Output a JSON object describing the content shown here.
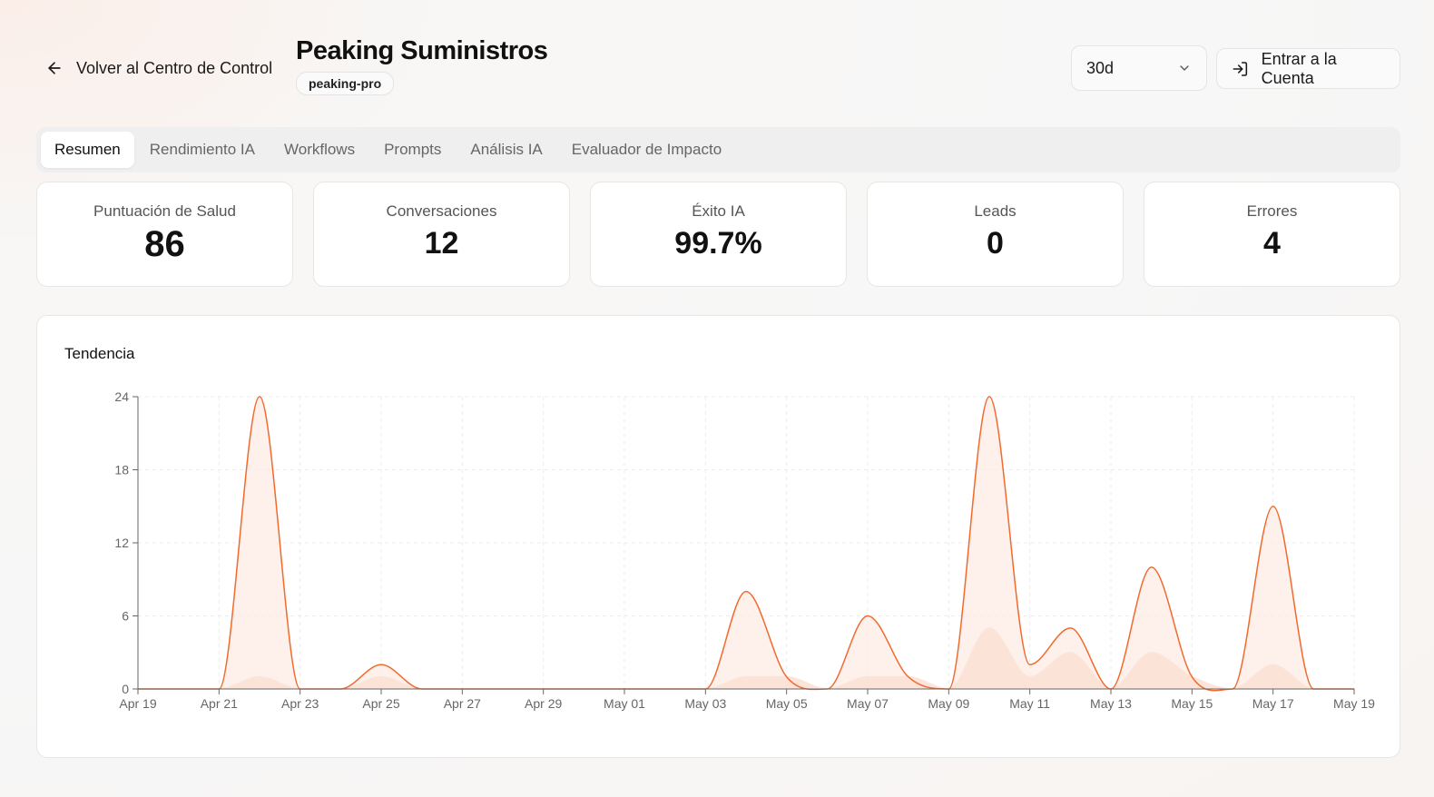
{
  "header": {
    "back_label": "Volver al Centro de Control",
    "title": "Peaking Suministros",
    "slug": "peaking-pro",
    "range_value": "30d",
    "enter_label": "Entrar a la Cuenta",
    "icons": {
      "back": "arrow-left-icon",
      "select": "chevron-down-icon",
      "enter": "log-in-icon"
    }
  },
  "tabs": [
    {
      "label": "Resumen",
      "active": true
    },
    {
      "label": "Rendimiento IA",
      "active": false
    },
    {
      "label": "Workflows",
      "active": false
    },
    {
      "label": "Prompts",
      "active": false
    },
    {
      "label": "Análisis IA",
      "active": false
    },
    {
      "label": "Evaluador de Impacto",
      "active": false
    }
  ],
  "metrics": [
    {
      "label": "Puntuación de Salud",
      "value": "86"
    },
    {
      "label": "Conversaciones",
      "value": "12"
    },
    {
      "label": "Éxito IA",
      "value": "99.7%"
    },
    {
      "label": "Leads",
      "value": "0"
    },
    {
      "label": "Errores",
      "value": "4"
    }
  ],
  "chart": {
    "title": "Tendencia"
  },
  "colors": {
    "primary": "#f26a2e",
    "primary_fill": "#fdebe3",
    "secondary_fill": "#fbe1d6"
  },
  "chart_data": {
    "type": "area",
    "title": "Tendencia",
    "xlabel": "",
    "ylabel": "",
    "ylim": [
      0,
      24
    ],
    "yticks": [
      0,
      6,
      12,
      18,
      24
    ],
    "grid": true,
    "x_tick_labels": [
      "Apr 19",
      "Apr 21",
      "Apr 23",
      "Apr 25",
      "Apr 27",
      "Apr 29",
      "May 01",
      "May 03",
      "May 05",
      "May 07",
      "May 09",
      "May 11",
      "May 13",
      "May 15",
      "May 17",
      "May 19"
    ],
    "x": [
      "Apr 19",
      "Apr 20",
      "Apr 21",
      "Apr 22",
      "Apr 23",
      "Apr 24",
      "Apr 25",
      "Apr 26",
      "Apr 27",
      "Apr 28",
      "Apr 29",
      "Apr 30",
      "May 01",
      "May 02",
      "May 03",
      "May 04",
      "May 05",
      "May 06",
      "May 07",
      "May 08",
      "May 09",
      "May 10",
      "May 11",
      "May 12",
      "May 13",
      "May 14",
      "May 15",
      "May 16",
      "May 17",
      "May 18",
      "May 19"
    ],
    "series": [
      {
        "values": [
          0,
          0,
          0,
          24,
          0,
          0,
          2,
          0,
          0,
          0,
          0,
          0,
          0,
          0,
          0,
          8,
          1,
          0,
          6,
          1,
          0,
          24,
          2,
          5,
          0,
          10,
          1,
          0,
          15,
          0,
          0
        ]
      },
      {
        "values": [
          0,
          0,
          0,
          1,
          0,
          0,
          1,
          0,
          0,
          0,
          0,
          0,
          0,
          0,
          0,
          1,
          1,
          0,
          1,
          1,
          0,
          5,
          1,
          3,
          0,
          3,
          1,
          0,
          2,
          0,
          0
        ]
      }
    ]
  }
}
